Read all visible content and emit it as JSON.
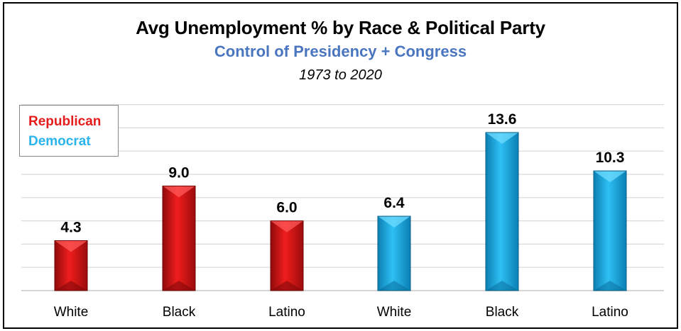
{
  "chart_data": {
    "type": "bar",
    "title": "Avg Unemployment % by Race & Political Party",
    "subtitle": "Control of Presidency + Congress",
    "period": "1973 to 2020",
    "categories": [
      "White",
      "Black",
      "Latino",
      "White",
      "Black",
      "Latino"
    ],
    "values": [
      4.3,
      9.0,
      6.0,
      6.4,
      13.6,
      10.3
    ],
    "value_labels": [
      "4.3",
      "9.0",
      "6.0",
      "6.4",
      "13.6",
      "10.3"
    ],
    "bar_groups": [
      "Republican",
      "Republican",
      "Republican",
      "Democrat",
      "Democrat",
      "Democrat"
    ],
    "legend": [
      {
        "name": "Republican",
        "color": "#e51c1c"
      },
      {
        "name": "Democrat",
        "color": "#29b4ec"
      }
    ],
    "legend_position": "top-left",
    "ylim": [
      0,
      16
    ],
    "grid": true,
    "xlabel": "",
    "ylabel": ""
  }
}
